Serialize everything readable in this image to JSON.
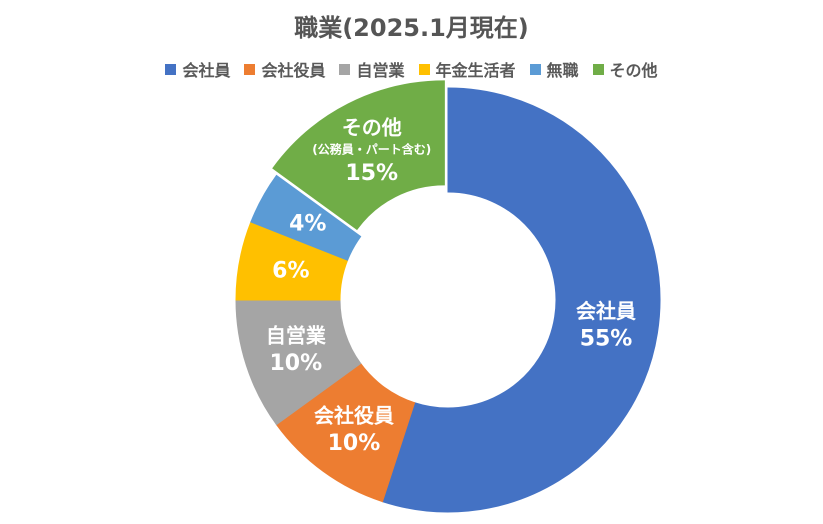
{
  "chart_data": {
    "type": "pie",
    "variant": "donut",
    "title": "職業(2025.1月現在)",
    "legend_position": "top",
    "slices": [
      {
        "label": "会社員",
        "value": 55,
        "value_label": "55%",
        "color": "#4472C4"
      },
      {
        "label": "会社役員",
        "value": 10,
        "value_label": "10%",
        "color": "#ED7D31"
      },
      {
        "label": "自営業",
        "value": 10,
        "value_label": "10%",
        "color": "#A5A5A5"
      },
      {
        "label": "年金生活者",
        "value": 6,
        "value_label": "6%",
        "color": "#FFC000"
      },
      {
        "label": "無職",
        "value": 4,
        "value_label": "4%",
        "color": "#5B9BD5"
      },
      {
        "label": "その他",
        "value": 15,
        "value_label": "15%",
        "color": "#70AD47",
        "note": "(公務員・パート含む)"
      }
    ]
  }
}
